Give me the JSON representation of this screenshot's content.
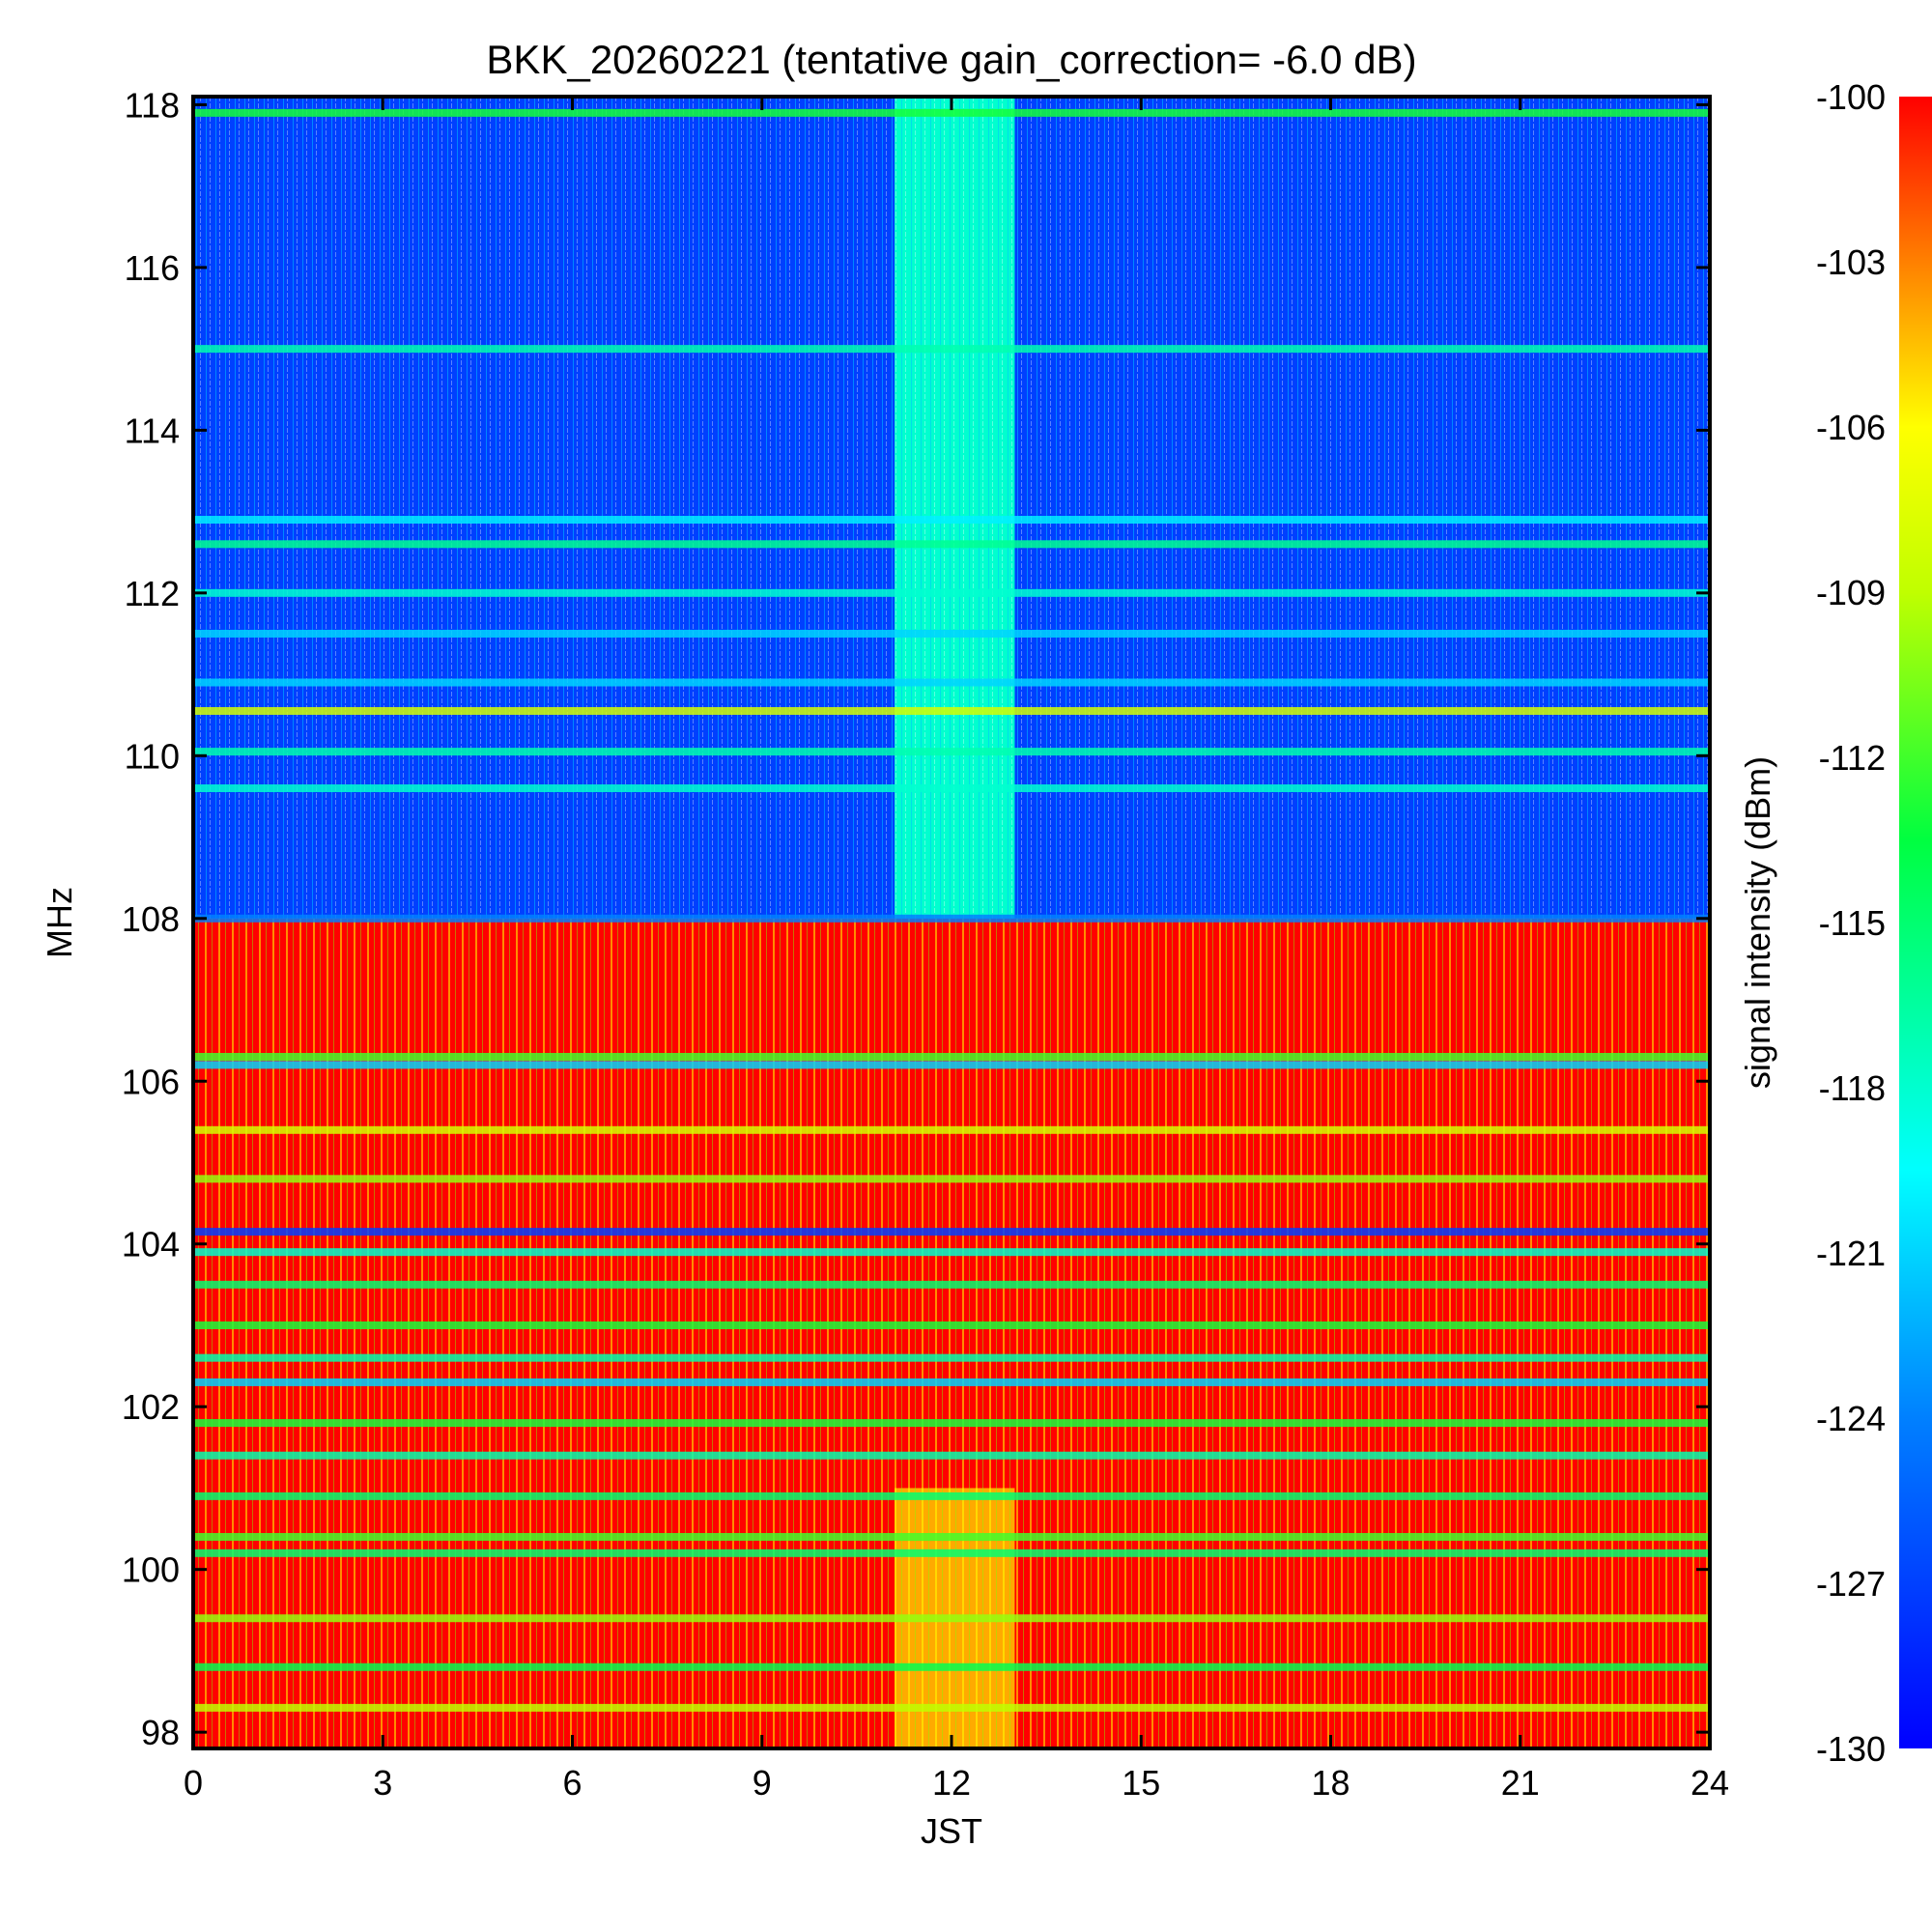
{
  "chart_data": {
    "type": "heatmap",
    "title": "BKK_20260221 (tentative gain_correction= -6.0 dB)",
    "xlabel": "JST",
    "ylabel": "MHz",
    "xlim": [
      0,
      24
    ],
    "ylim": [
      97.8,
      118.1
    ],
    "xticks": [
      {
        "value": 0,
        "label": "0"
      },
      {
        "value": 3,
        "label": "3"
      },
      {
        "value": 6,
        "label": "6"
      },
      {
        "value": 9,
        "label": "9"
      },
      {
        "value": 12,
        "label": "12"
      },
      {
        "value": 15,
        "label": "15"
      },
      {
        "value": 18,
        "label": "18"
      },
      {
        "value": 21,
        "label": "21"
      },
      {
        "value": 24,
        "label": "24"
      }
    ],
    "yticks": [
      {
        "value": 98,
        "label": "98"
      },
      {
        "value": 100,
        "label": "100"
      },
      {
        "value": 102,
        "label": "102"
      },
      {
        "value": 104,
        "label": "104"
      },
      {
        "value": 106,
        "label": "106"
      },
      {
        "value": 108,
        "label": "108"
      },
      {
        "value": 110,
        "label": "110"
      },
      {
        "value": 112,
        "label": "112"
      },
      {
        "value": 114,
        "label": "114"
      },
      {
        "value": 116,
        "label": "116"
      },
      {
        "value": 118,
        "label": "118"
      }
    ],
    "colorbar": {
      "label": "signal intensity (dBm)",
      "range": [
        -130,
        -100
      ],
      "ticks": [
        {
          "value": -100,
          "label": "-100"
        },
        {
          "value": -103,
          "label": "-103"
        },
        {
          "value": -106,
          "label": "-106"
        },
        {
          "value": -109,
          "label": "-109"
        },
        {
          "value": -112,
          "label": "-112"
        },
        {
          "value": -115,
          "label": "-115"
        },
        {
          "value": -118,
          "label": "-118"
        },
        {
          "value": -121,
          "label": "-121"
        },
        {
          "value": -124,
          "label": "-124"
        },
        {
          "value": -127,
          "label": "-127"
        },
        {
          "value": -130,
          "label": "-130"
        }
      ]
    },
    "regions": [
      {
        "name": "aviation band background",
        "freq_range": [
          108.0,
          118.1
        ],
        "time_range": [
          0,
          24
        ],
        "intensity_dbm": -127
      },
      {
        "name": "FM broadcast band background",
        "freq_range": [
          97.8,
          108.0
        ],
        "time_range": [
          0,
          24
        ],
        "intensity_dbm": -100
      },
      {
        "name": "midday elevated noise (aviation)",
        "freq_range": [
          108.0,
          118.1
        ],
        "time_range": [
          11.1,
          13.0
        ],
        "intensity_dbm": -118
      },
      {
        "name": "midday elevated noise (FM)",
        "freq_range": [
          97.8,
          101.0
        ],
        "time_range": [
          11.1,
          13.0
        ],
        "intensity_dbm": -104
      }
    ],
    "bands": [
      {
        "freq": 117.9,
        "intensity_dbm": -113
      },
      {
        "freq": 115.0,
        "intensity_dbm": -117
      },
      {
        "freq": 112.9,
        "intensity_dbm": -120
      },
      {
        "freq": 112.6,
        "intensity_dbm": -116
      },
      {
        "freq": 112.0,
        "intensity_dbm": -118
      },
      {
        "freq": 111.5,
        "intensity_dbm": -121
      },
      {
        "freq": 110.9,
        "intensity_dbm": -121
      },
      {
        "freq": 110.55,
        "intensity_dbm": -108
      },
      {
        "freq": 110.05,
        "intensity_dbm": -117
      },
      {
        "freq": 109.6,
        "intensity_dbm": -118
      },
      {
        "freq": 108.0,
        "intensity_dbm": -124
      },
      {
        "freq": 106.3,
        "intensity_dbm": -112
      },
      {
        "freq": 106.2,
        "intensity_dbm": -121
      },
      {
        "freq": 105.4,
        "intensity_dbm": -108
      },
      {
        "freq": 104.8,
        "intensity_dbm": -110
      },
      {
        "freq": 104.15,
        "intensity_dbm": -127
      },
      {
        "freq": 103.9,
        "intensity_dbm": -118
      },
      {
        "freq": 103.5,
        "intensity_dbm": -115
      },
      {
        "freq": 103.0,
        "intensity_dbm": -113
      },
      {
        "freq": 102.6,
        "intensity_dbm": -117
      },
      {
        "freq": 102.3,
        "intensity_dbm": -121
      },
      {
        "freq": 101.8,
        "intensity_dbm": -113
      },
      {
        "freq": 101.4,
        "intensity_dbm": -117
      },
      {
        "freq": 100.9,
        "intensity_dbm": -115
      },
      {
        "freq": 100.4,
        "intensity_dbm": -112
      },
      {
        "freq": 100.2,
        "intensity_dbm": -115
      },
      {
        "freq": 99.4,
        "intensity_dbm": -110
      },
      {
        "freq": 98.8,
        "intensity_dbm": -114
      },
      {
        "freq": 98.3,
        "intensity_dbm": -109
      }
    ]
  }
}
